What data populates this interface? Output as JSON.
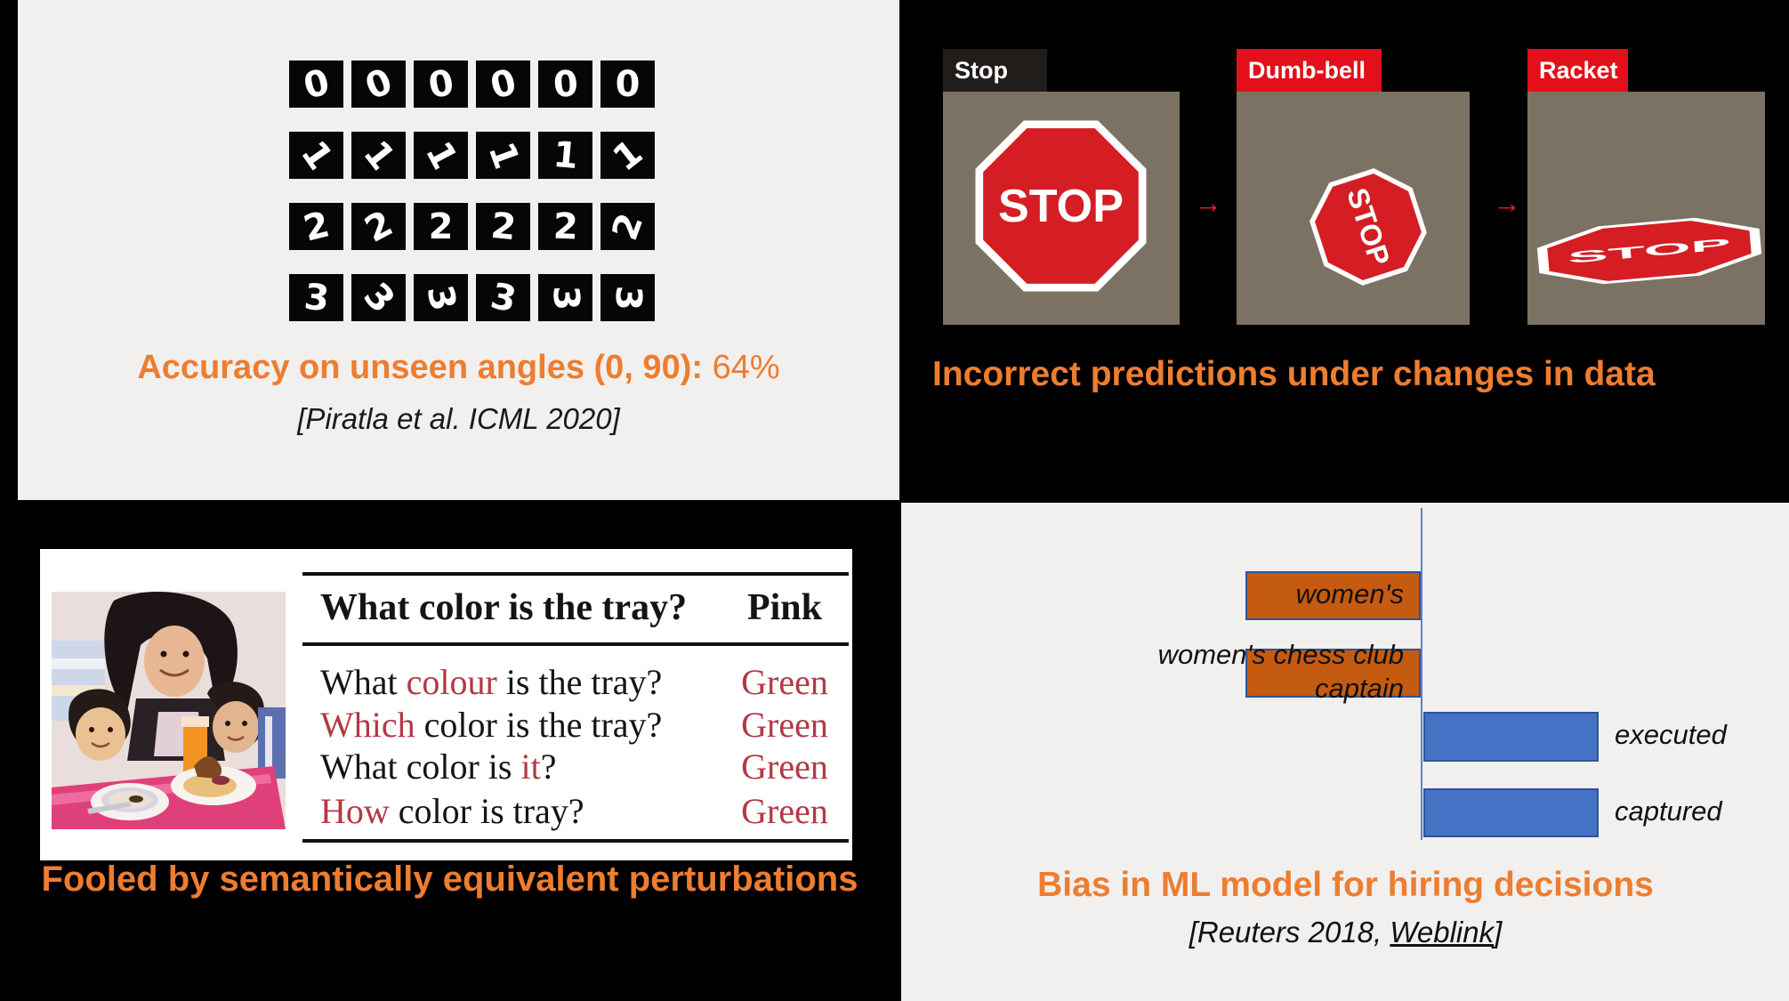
{
  "colors": {
    "slide_background": "#000000",
    "panel_background": "#f1f0ee",
    "accent_orange": "#ED7D31",
    "sign_panel_taupe": "#7b7264",
    "stop_sign_red": "#d41e24",
    "label_tab_red": "#e30f1b",
    "label_tab_dark": "#211d1a",
    "table_red": "#b33945",
    "bar_negative": "#C55A11",
    "bar_positive": "#4472C4",
    "bar_outline": "#2F5497"
  },
  "top_left": {
    "caption_bold": "Accuracy on unseen angles (0, 90):",
    "caption_value": "64%",
    "citation": "[Piratla et al. ICML 2020]",
    "mnist": {
      "rows": [
        {
          "char": "0",
          "rotations": [
            -14,
            -22,
            -10,
            -14,
            -4,
            0
          ]
        },
        {
          "char": "1",
          "rotations": [
            55,
            52,
            62,
            70,
            5,
            -38
          ]
        },
        {
          "char": "2",
          "rotations": [
            -14,
            -28,
            0,
            6,
            2,
            -70
          ]
        },
        {
          "char": "3",
          "rotations": [
            6,
            48,
            78,
            12,
            88,
            92
          ]
        }
      ]
    }
  },
  "top_right": {
    "caption": "Incorrect predictions under changes in data",
    "arrow": "→",
    "panels": [
      {
        "label": "Stop",
        "tab_style": "dark",
        "sign_text": "STOP"
      },
      {
        "label": "Dumb-bell",
        "tab_style": "red",
        "sign_text": "STOP"
      },
      {
        "label": "Racket",
        "tab_style": "red",
        "sign_text": "STOP"
      }
    ]
  },
  "bottom_left": {
    "caption": "Fooled by semantically equivalent perturbations",
    "table": {
      "header_question": "What color is the tray?",
      "header_answer": "Pink",
      "rows": [
        {
          "segments": [
            {
              "text": "What "
            },
            {
              "text": "colour",
              "red": true
            },
            {
              "text": " is the tray?"
            }
          ],
          "answer": "Green"
        },
        {
          "segments": [
            {
              "text": "Which",
              "red": true
            },
            {
              "text": " color is the tray?"
            }
          ],
          "answer": "Green"
        },
        {
          "segments": [
            {
              "text": "What color is "
            },
            {
              "text": "it",
              "red": true
            },
            {
              "text": "?"
            }
          ],
          "answer": "Green"
        },
        {
          "segments": [
            {
              "text": "How",
              "red": true
            },
            {
              "text": " color is tray?"
            }
          ],
          "answer": "Green"
        }
      ]
    }
  },
  "bottom_right": {
    "caption": "Bias in ML model for hiring decisions",
    "citation_prefix": "[Reuters 2018, ",
    "citation_link": "Weblink",
    "citation_suffix": "]",
    "label_lines": [
      [
        "women's"
      ],
      [
        "women's chess club",
        "captain"
      ],
      [
        "executed"
      ],
      [
        "captured"
      ]
    ]
  },
  "chart_data": {
    "type": "bar",
    "orientation": "horizontal",
    "categories": [
      "women's",
      "women's chess club captain",
      "executed",
      "captured"
    ],
    "values": [
      -1,
      -1,
      1,
      1
    ],
    "value_note": "qualitative resume-term weights; negative bars = penalized terms, positive bars = favored terms (no numeric axis labels shown)",
    "colors": {
      "negative": "#C55A11",
      "positive": "#4472C4",
      "outline": "#2F5497",
      "axis": "#5b84cf"
    },
    "title": "Bias in ML model for hiring decisions",
    "xlabel": "",
    "ylabel": "",
    "legend": false,
    "grid": false
  }
}
